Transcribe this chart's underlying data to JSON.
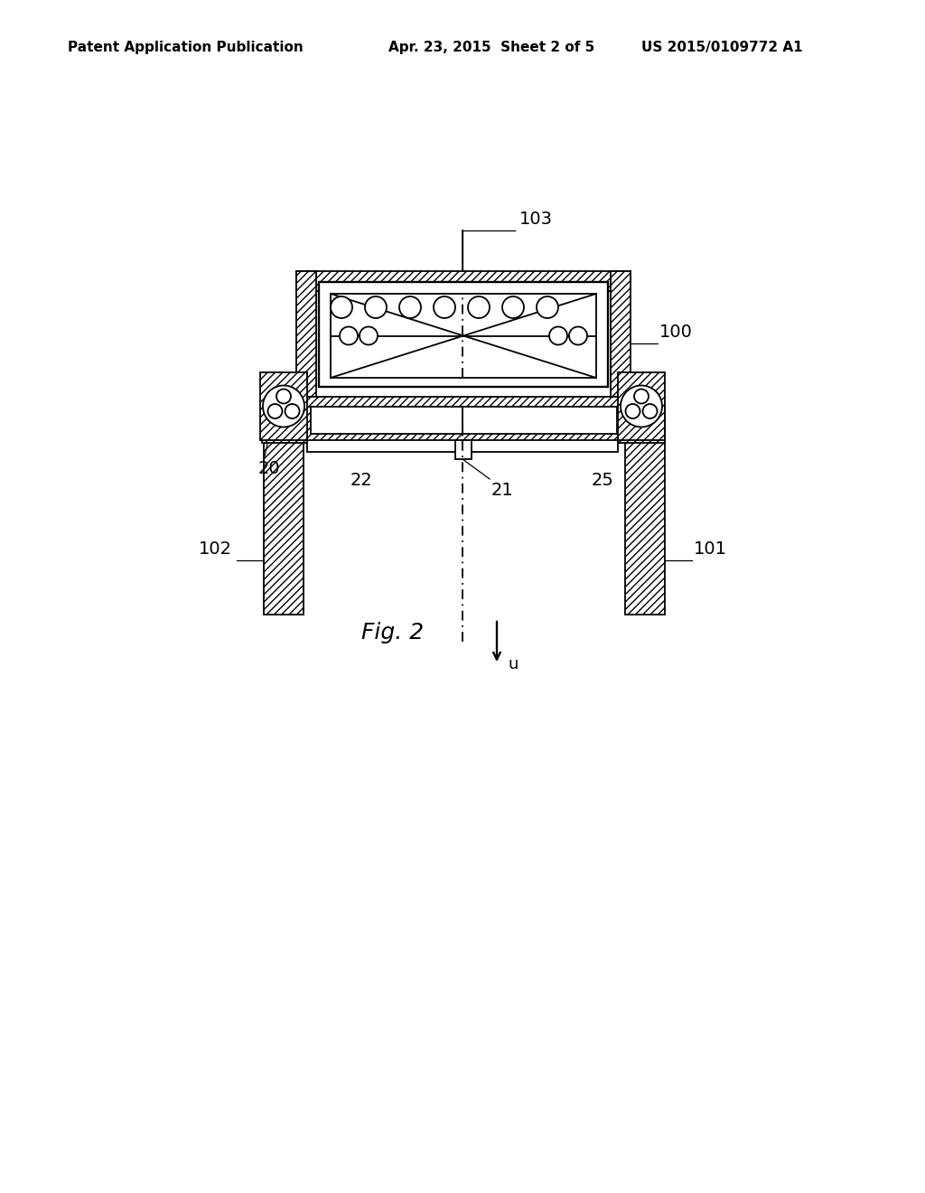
{
  "bg_color": "#ffffff",
  "line_color": "#000000",
  "header_left": "Patent Application Publication",
  "header_mid": "Apr. 23, 2015  Sheet 2 of 5",
  "header_right": "US 2015/0109772 A1",
  "fig_label": "Fig. 2",
  "arrow_label": "u"
}
